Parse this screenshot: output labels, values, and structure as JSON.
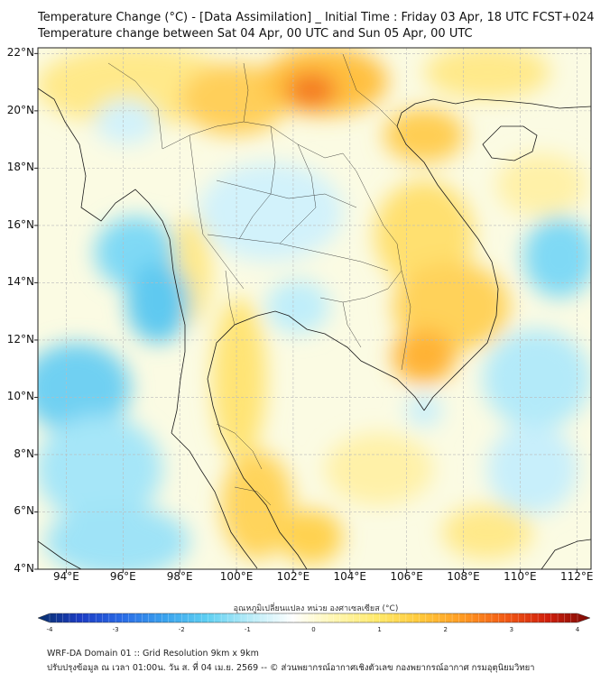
{
  "titles": {
    "line1": "Temperature Change (°C) - [Data Assimilation] _ Initial Time : Friday 03 Apr, 18 UTC FCST+024",
    "line2": "Temperature change between Sat 04 Apr, 00 UTC and Sun 05 Apr, 00 UTC"
  },
  "map": {
    "lat_labels": [
      "22°N",
      "20°N",
      "18°N",
      "16°N",
      "14°N",
      "12°N",
      "10°N",
      "8°N",
      "6°N",
      "4°N"
    ],
    "lon_labels": [
      "94°E",
      "96°E",
      "98°E",
      "100°E",
      "102°E",
      "104°E",
      "106°E",
      "108°E",
      "110°E",
      "112°E"
    ],
    "extent": {
      "lon_min": 93,
      "lon_max": 112.5,
      "lat_min": 4,
      "lat_max": 22.2
    }
  },
  "colorbar": {
    "title": "อุณหภูมิเปลี่ยนแปลง หน่วย องศาเซลเซียส (°C)",
    "ticks": [
      "-4",
      "-3",
      "-2",
      "-1",
      "0",
      "1",
      "2",
      "3",
      "4"
    ],
    "colors": [
      "#08306b",
      "#1c3cc4",
      "#2a6ce6",
      "#3aa3ee",
      "#5fd0f2",
      "#b9ecf8",
      "#ffffff",
      "#fff6b0",
      "#ffe96a",
      "#ffc83a",
      "#ff9a22",
      "#f25a14",
      "#d01f0c",
      "#7a0a05"
    ]
  },
  "footer": {
    "line1": "WRF-DA Domain 01 :: Grid Resolution 9km x 9km",
    "line2": "ปรับปรุงข้อมูล ณ เวลา 01:00น. วัน ส. ที่ 04 เม.ย. 2569 -- © ส่วนพยากรณ์อากาศเชิงตัวเลข กองพยากรณ์อากาศ กรมอุตุนิยมวิทยา"
  }
}
